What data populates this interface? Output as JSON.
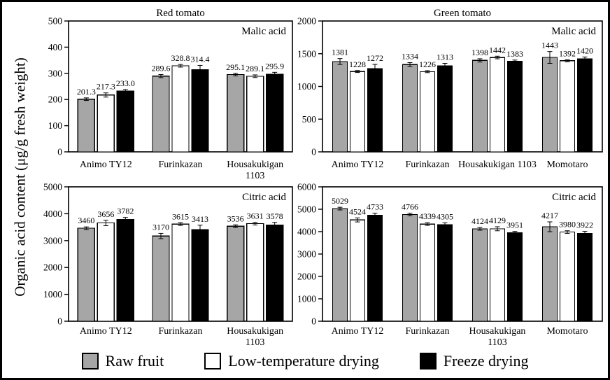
{
  "figure": {
    "ylabel": "Organic acid content (μg/g fresh weight)",
    "colors": {
      "axis": "#000000",
      "background": "#ffffff"
    },
    "legend": [
      {
        "label": "Raw fruit",
        "color": "#a6a6a6"
      },
      {
        "label": "Low-temperature drying",
        "color": "#ffffff"
      },
      {
        "label": "Freeze drying",
        "color": "#000000"
      }
    ]
  },
  "chart_data": [
    {
      "id": "red-malic",
      "type": "bar",
      "title": "Red tomato",
      "annotation": "Malic acid",
      "ylim": [
        0,
        500
      ],
      "ytick_step": 100,
      "grid": false,
      "categories": [
        "Animo TY12",
        "Furinkazan",
        "Housakukigan 1103"
      ],
      "category_lines": [
        [
          "Animo TY12"
        ],
        [
          "Furinkazan"
        ],
        [
          "Housakukigan",
          "1103"
        ]
      ],
      "series": [
        {
          "name": "Raw fruit",
          "color": "#a6a6a6",
          "values": [
            201.3,
            289.6,
            295.1
          ],
          "labels": [
            "201.3",
            "289.6",
            "295.1"
          ],
          "errors": [
            5,
            6,
            5
          ]
        },
        {
          "name": "Low-temperature drying",
          "color": "#ffffff",
          "values": [
            217.3,
            328.8,
            289.1
          ],
          "labels": [
            "217.3",
            "328.8",
            "289.1"
          ],
          "errors": [
            8,
            5,
            5
          ]
        },
        {
          "name": "Freeze drying",
          "color": "#000000",
          "values": [
            233.0,
            314.4,
            295.9
          ],
          "labels": [
            "233.0",
            "314.4",
            "295.9"
          ],
          "errors": [
            5,
            16,
            8
          ]
        }
      ]
    },
    {
      "id": "green-malic",
      "type": "bar",
      "title": "Green tomato",
      "annotation": "Malic acid",
      "ylim": [
        0,
        2000
      ],
      "ytick_step": 500,
      "grid": false,
      "categories": [
        "Animo TY12",
        "Furinkazan",
        "Housakukigan 1103",
        "Momotaro"
      ],
      "category_lines": [
        [
          "Animo TY12"
        ],
        [
          "Furinkazan"
        ],
        [
          "Housakukigan 1103"
        ],
        [
          "Momotaro"
        ]
      ],
      "series": [
        {
          "name": "Raw fruit",
          "color": "#a6a6a6",
          "values": [
            1381,
            1334,
            1398,
            1443
          ],
          "labels": [
            "1381",
            "1334",
            "1398",
            "1443"
          ],
          "errors": [
            45,
            30,
            25,
            90
          ]
        },
        {
          "name": "Low-temperature drying",
          "color": "#ffffff",
          "values": [
            1228,
            1226,
            1442,
            1392
          ],
          "labels": [
            "1228",
            "1226",
            "1442",
            "1392"
          ],
          "errors": [
            15,
            15,
            20,
            15
          ]
        },
        {
          "name": "Freeze drying",
          "color": "#000000",
          "values": [
            1272,
            1313,
            1383,
            1420
          ],
          "labels": [
            "1272",
            "1313",
            "1383",
            "1420"
          ],
          "errors": [
            65,
            40,
            20,
            30
          ]
        }
      ]
    },
    {
      "id": "red-citric",
      "type": "bar",
      "title": "",
      "annotation": "Citric acid",
      "ylim": [
        0,
        5000
      ],
      "ytick_step": 1000,
      "grid": false,
      "categories": [
        "Animo TY12",
        "Furinkazan",
        "Housakukigan 1103"
      ],
      "category_lines": [
        [
          "Animo TY12"
        ],
        [
          "Furinkazan"
        ],
        [
          "Housakukigan",
          "1103"
        ]
      ],
      "series": [
        {
          "name": "Raw fruit",
          "color": "#a6a6a6",
          "values": [
            3460,
            3170,
            3536
          ],
          "labels": [
            "3460",
            "3170",
            "3536"
          ],
          "errors": [
            50,
            100,
            50
          ]
        },
        {
          "name": "Low-temperature drying",
          "color": "#ffffff",
          "values": [
            3656,
            3615,
            3631
          ],
          "labels": [
            "3656",
            "3615",
            "3631"
          ],
          "errors": [
            100,
            50,
            50
          ]
        },
        {
          "name": "Freeze drying",
          "color": "#000000",
          "values": [
            3782,
            3413,
            3578
          ],
          "labels": [
            "3782",
            "3413",
            "3578"
          ],
          "errors": [
            80,
            160,
            100
          ]
        }
      ]
    },
    {
      "id": "green-citric",
      "type": "bar",
      "title": "",
      "annotation": "Citric acid",
      "ylim": [
        0,
        6000
      ],
      "ytick_step": 1000,
      "grid": false,
      "categories": [
        "Animo TY12",
        "Furinkazan",
        "Housakukigan 1103",
        "Momotaro"
      ],
      "category_lines": [
        [
          "Animo TY12"
        ],
        [
          "Furinkazan"
        ],
        [
          "Housakukigan",
          "1103"
        ],
        [
          "Momotaro"
        ]
      ],
      "series": [
        {
          "name": "Raw fruit",
          "color": "#a6a6a6",
          "values": [
            5029,
            4766,
            4124,
            4217
          ],
          "labels": [
            "5029",
            "4766",
            "4124",
            "4217"
          ],
          "errors": [
            60,
            60,
            60,
            220
          ]
        },
        {
          "name": "Low-temperature drying",
          "color": "#ffffff",
          "values": [
            4524,
            4339,
            4129,
            3980
          ],
          "labels": [
            "4524",
            "4339",
            "4129",
            "3980"
          ],
          "errors": [
            90,
            60,
            90,
            60
          ]
        },
        {
          "name": "Freeze drying",
          "color": "#000000",
          "values": [
            4733,
            4305,
            3951,
            3922
          ],
          "labels": [
            "4733",
            "4305",
            "3951",
            "3922"
          ],
          "errors": [
            90,
            90,
            60,
            90
          ]
        }
      ]
    }
  ]
}
